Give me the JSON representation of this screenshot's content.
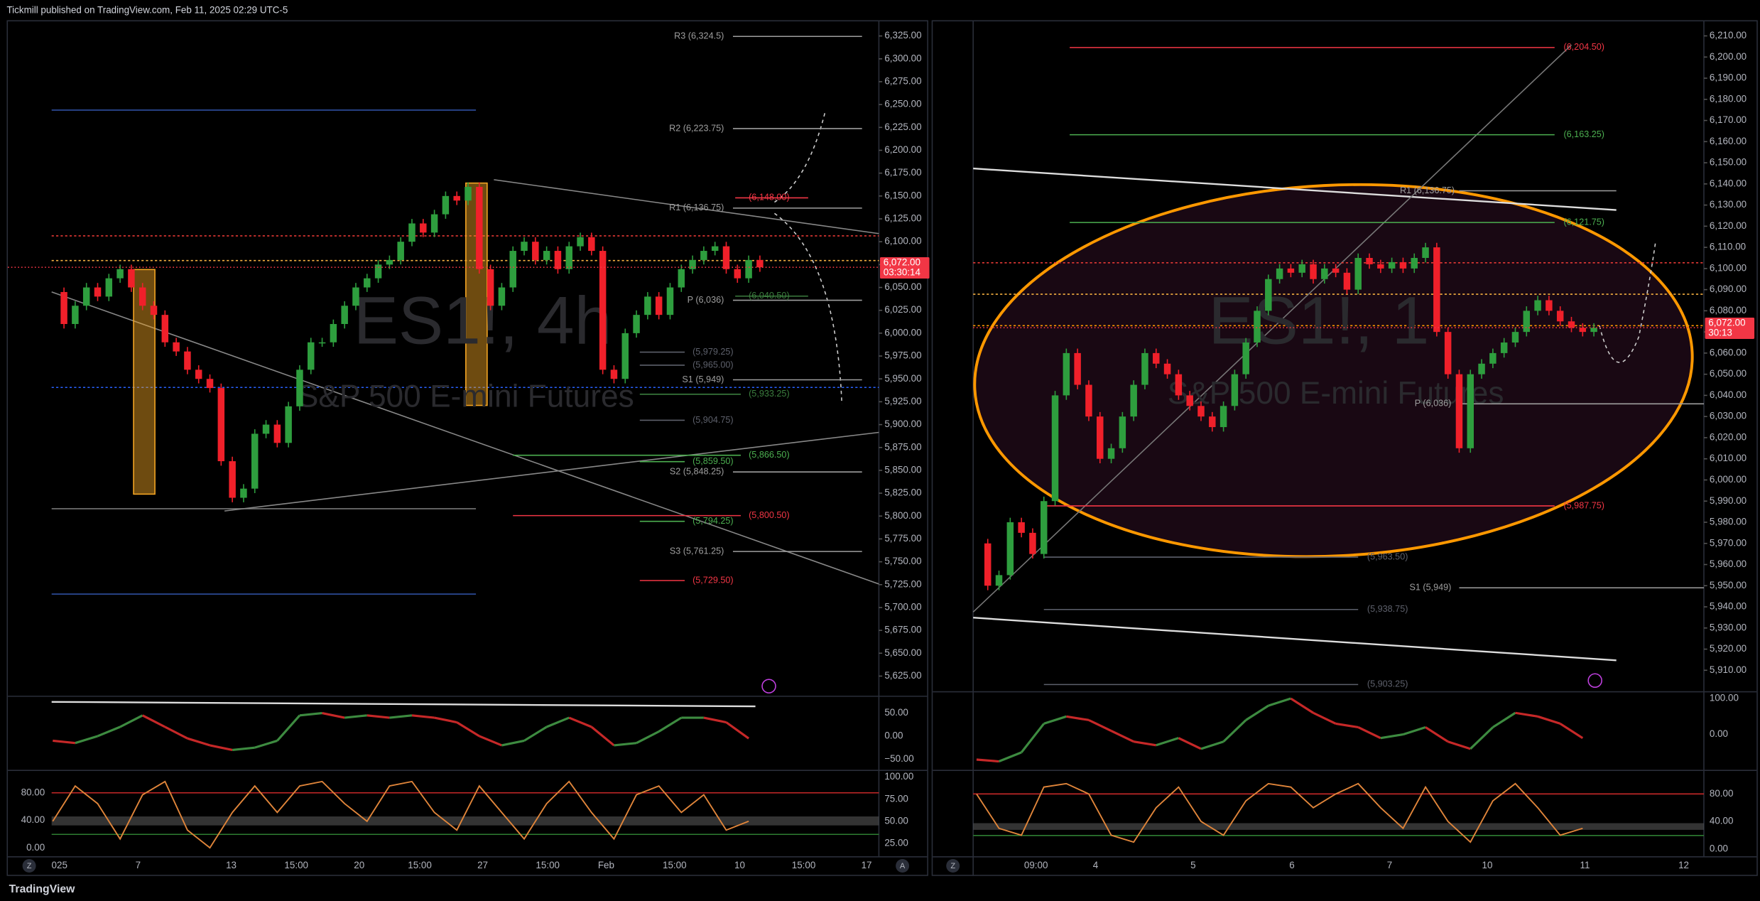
{
  "header": {
    "text": "Tickmill published on TradingView.com, Feb 11, 2025 02:29 UTC-5"
  },
  "footer": {
    "brand": "TradingView"
  },
  "chart_data": [
    {
      "type": "candlestick",
      "symbol": "ES1!, 4h",
      "description": "S&P 500 E-mini Futures",
      "up_color": "#2e9e3e",
      "down_color": "#f0202a",
      "values": [
        6045,
        6010,
        6030,
        6050,
        6040,
        6060,
        6070,
        6050,
        6030,
        6020,
        5990,
        5980,
        5960,
        5950,
        5940,
        5860,
        5820,
        5830,
        5890,
        5900,
        5880,
        5920,
        5960,
        5990,
        5990,
        6010,
        6030,
        6050,
        6060,
        6075,
        6080,
        6100,
        6120,
        6110,
        6130,
        6150,
        6145,
        6160,
        6070,
        6030,
        6050,
        6090,
        6100,
        6080,
        6090,
        6070,
        6095,
        6105,
        6090,
        5960,
        5950,
        6000,
        6020,
        6040,
        6020,
        6050,
        6070,
        6080,
        6090,
        6095,
        6070,
        6060,
        6080,
        6072
      ],
      "xlim": [
        -4,
        73.6
      ],
      "xticks": [
        {
          "value": 0.6,
          "label": "025"
        },
        {
          "value": 7.6,
          "label": "7"
        },
        {
          "value": 15.9,
          "label": "13"
        },
        {
          "value": 21.7,
          "label": "15:00"
        },
        {
          "value": 27.3,
          "label": "20"
        },
        {
          "value": 32.7,
          "label": "15:00"
        },
        {
          "value": 38.3,
          "label": "27"
        },
        {
          "value": 44.1,
          "label": "15:00"
        },
        {
          "value": 49.3,
          "label": "Feb"
        },
        {
          "value": 55.4,
          "label": "15:00"
        },
        {
          "value": 61.2,
          "label": "10"
        },
        {
          "value": 66.9,
          "label": "15:00"
        },
        {
          "value": 72.5,
          "label": "17"
        }
      ],
      "ylim": [
        5605.4,
        6342.2
      ],
      "yticks": [
        {
          "value": 5625,
          "label": "5,625.00"
        },
        {
          "value": 5650,
          "label": "5,650.00"
        },
        {
          "value": 5675,
          "label": "5,675.00"
        },
        {
          "value": 5700,
          "label": "5,700.00"
        },
        {
          "value": 5725,
          "label": "5,725.00"
        },
        {
          "value": 5750,
          "label": "5,750.00"
        },
        {
          "value": 5775,
          "label": "5,775.00"
        },
        {
          "value": 5800,
          "label": "5,800.00"
        },
        {
          "value": 5825,
          "label": "5,825.00"
        },
        {
          "value": 5850,
          "label": "5,850.00"
        },
        {
          "value": 5875,
          "label": "5,875.00"
        },
        {
          "value": 5900,
          "label": "5,900.00"
        },
        {
          "value": 5925,
          "label": "5,925.00"
        },
        {
          "value": 5950,
          "label": "5,950.00"
        },
        {
          "value": 5975,
          "label": "5,975.00"
        },
        {
          "value": 6000,
          "label": "6,000.00"
        },
        {
          "value": 6025,
          "label": "6,025.00"
        },
        {
          "value": 6050,
          "label": "6,050.00"
        },
        {
          "value": 6075,
          "label": "6,075.00"
        },
        {
          "value": 6100,
          "label": "6,100.00"
        },
        {
          "value": 6125,
          "label": "6,125.00"
        },
        {
          "value": 6150,
          "label": "6,150.00"
        },
        {
          "value": 6175,
          "label": "6,175.00"
        },
        {
          "value": 6200,
          "label": "6,200.00"
        },
        {
          "value": 6225,
          "label": "6,225.00"
        },
        {
          "value": 6250,
          "label": "6,250.00"
        },
        {
          "value": 6275,
          "label": "6,275.00"
        },
        {
          "value": 6300,
          "label": "6,300.00"
        },
        {
          "value": 6325,
          "label": "6,325.00"
        }
      ],
      "levels": [
        {
          "label": "R3 (6,324.5)",
          "value": 6324.5,
          "color": "#9e9e9e"
        },
        {
          "label": "R2 (6,223.75)",
          "value": 6223.75,
          "color": "#9e9e9e"
        },
        {
          "label": "R1 (6,136.75)",
          "value": 6136.75,
          "color": "#9e9e9e"
        },
        {
          "label": "P (6,036)",
          "value": 6036,
          "color": "#9e9e9e"
        },
        {
          "label": "S1 (5,949)",
          "value": 5949,
          "color": "#9e9e9e"
        },
        {
          "label": "S2 (5,848.25)",
          "value": 5848.25,
          "color": "#9e9e9e"
        },
        {
          "label": "S3 (5,761.25)",
          "value": 5761.25,
          "color": "#9e9e9e"
        },
        {
          "label": "(6,148.00)",
          "value": 6148,
          "color": "#f23645"
        },
        {
          "label": "(6,040.50)",
          "value": 6040.5,
          "color": "#3b7d3e"
        },
        {
          "label": "(5,979.25)",
          "value": 5979.25,
          "color": "#5d606b"
        },
        {
          "label": "(5,965.00)",
          "value": 5965,
          "color": "#5d606b"
        },
        {
          "label": "(5,933.25)",
          "value": 5933.25,
          "color": "#3b7d3e"
        },
        {
          "label": "(5,904.75)",
          "value": 5904.75,
          "color": "#5d606b"
        },
        {
          "label": "(5,866.50)",
          "value": 5866.5,
          "color": "#4caf50"
        },
        {
          "label": "(5,859.50)",
          "value": 5859.5,
          "color": "#4caf50"
        },
        {
          "label": "(5,800.50)",
          "value": 5800.5,
          "color": "#f23645"
        },
        {
          "label": "(5,794.25)",
          "value": 5794.25,
          "color": "#4caf50"
        },
        {
          "label": "(5,729.50)",
          "value": 5729.5,
          "color": "#f23645"
        }
      ],
      "price_tag": {
        "value": 6072,
        "label": "6,072.00",
        "countdown": "03:30:14",
        "color": "#f23645"
      },
      "corner_buttons": [
        "Z",
        "A"
      ],
      "indicators": [
        {
          "type": "oscillator",
          "up_color": "#3d8b40",
          "down_color": "#c62828",
          "xlim": [
            -2,
            36.8
          ],
          "ylim": [
            -74.4,
            81.7
          ],
          "yticks": [
            {
              "value": 50,
              "label": "50.00"
            },
            {
              "value": 0,
              "label": "0.00"
            },
            {
              "value": -50,
              "label": "−50.00"
            }
          ],
          "values": [
            -10,
            -15,
            0,
            20,
            45,
            20,
            -5,
            -20,
            -30,
            -25,
            -10,
            45,
            50,
            40,
            45,
            40,
            45,
            40,
            30,
            0,
            -20,
            -10,
            20,
            40,
            20,
            -20,
            -15,
            10,
            40,
            40,
            30,
            -5
          ]
        },
        {
          "type": "line",
          "color": "#e0853a",
          "xlim": [
            -2,
            36.8
          ],
          "ylim": [
            11,
            105.1
          ],
          "yticks": [
            {
              "value": 100,
              "label": "100.00"
            },
            {
              "value": 75,
              "label": "75.00"
            },
            {
              "value": 50,
              "label": "50.00"
            },
            {
              "value": 25,
              "label": "25.00"
            }
          ],
          "y2lim": [
            -11.4,
            109.4
          ],
          "y2ticks": [
            {
              "value": 80,
              "label": "80.00"
            },
            {
              "value": 40,
              "label": "40.00"
            },
            {
              "value": 0,
              "label": "0.00"
            }
          ],
          "values": [
            50,
            90,
            70,
            30,
            80,
            95,
            40,
            20,
            60,
            90,
            60,
            90,
            95,
            70,
            50,
            90,
            95,
            60,
            40,
            90,
            60,
            30,
            70,
            95,
            60,
            30,
            80,
            90,
            60,
            80,
            40,
            50
          ]
        }
      ]
    },
    {
      "type": "candlestick",
      "symbol": "ES1!, 1",
      "description": "S&P 500 E-mini Futures",
      "up_color": "#2e9e3e",
      "down_color": "#f0202a",
      "values": [
        5970,
        5950,
        5955,
        5980,
        5975,
        5965,
        5990,
        6040,
        6060,
        6045,
        6030,
        6010,
        6015,
        6030,
        6045,
        6060,
        6055,
        6050,
        6040,
        6035,
        6030,
        6025,
        6035,
        6050,
        6065,
        6080,
        6095,
        6100,
        6098,
        6102,
        6095,
        6100,
        6098,
        6090,
        6105,
        6102,
        6100,
        6103,
        6100,
        6105,
        6110,
        6070,
        6050,
        6015,
        6050,
        6055,
        6060,
        6065,
        6070,
        6080,
        6085,
        6080,
        6075,
        6072,
        6070,
        6072
      ],
      "xlim": [
        -0.3,
        64.8
      ],
      "xticks": [
        {
          "value": 5.3,
          "label": "09:00"
        },
        {
          "value": 10.6,
          "label": "4"
        },
        {
          "value": 19.3,
          "label": "5"
        },
        {
          "value": 28.1,
          "label": "6"
        },
        {
          "value": 36.8,
          "label": "7"
        },
        {
          "value": 45.5,
          "label": "10"
        },
        {
          "value": 54.2,
          "label": "11"
        },
        {
          "value": 63,
          "label": "12"
        }
      ],
      "ylim": [
        5900.9,
        6217.4
      ],
      "yticks": [
        {
          "value": 5910,
          "label": "5,910.00"
        },
        {
          "value": 5920,
          "label": "5,920.00"
        },
        {
          "value": 5930,
          "label": "5,930.00"
        },
        {
          "value": 5940,
          "label": "5,940.00"
        },
        {
          "value": 5950,
          "label": "5,950.00"
        },
        {
          "value": 5960,
          "label": "5,960.00"
        },
        {
          "value": 5970,
          "label": "5,970.00"
        },
        {
          "value": 5980,
          "label": "5,980.00"
        },
        {
          "value": 5990,
          "label": "5,990.00"
        },
        {
          "value": 6000,
          "label": "6,000.00"
        },
        {
          "value": 6010,
          "label": "6,010.00"
        },
        {
          "value": 6020,
          "label": "6,020.00"
        },
        {
          "value": 6030,
          "label": "6,030.00"
        },
        {
          "value": 6040,
          "label": "6,040.00"
        },
        {
          "value": 6050,
          "label": "6,050.00"
        },
        {
          "value": 6060,
          "label": "6,060.00"
        },
        {
          "value": 6070,
          "label": "6,070.00"
        },
        {
          "value": 6080,
          "label": "6,080.00"
        },
        {
          "value": 6090,
          "label": "6,090.00"
        },
        {
          "value": 6100,
          "label": "6,100.00"
        },
        {
          "value": 6110,
          "label": "6,110.00"
        },
        {
          "value": 6120,
          "label": "6,120.00"
        },
        {
          "value": 6130,
          "label": "6,130.00"
        },
        {
          "value": 6140,
          "label": "6,140.00"
        },
        {
          "value": 6150,
          "label": "6,150.00"
        },
        {
          "value": 6160,
          "label": "6,160.00"
        },
        {
          "value": 6170,
          "label": "6,170.00"
        },
        {
          "value": 6180,
          "label": "6,180.00"
        },
        {
          "value": 6190,
          "label": "6,190.00"
        },
        {
          "value": 6200,
          "label": "6,200.00"
        },
        {
          "value": 6210,
          "label": "6,210.00"
        }
      ],
      "levels": [
        {
          "label": "(6,204.50)",
          "value": 6204.5,
          "color": "#f23645"
        },
        {
          "label": "(6,163.25)",
          "value": 6163.25,
          "color": "#4caf50"
        },
        {
          "label": "R1 (6,136.75)",
          "value": 6136.75,
          "color": "#9e9e9e"
        },
        {
          "label": "(6,121.75)",
          "value": 6121.75,
          "color": "#4caf50"
        },
        {
          "label": "P (6,036)",
          "value": 6036,
          "color": "#9e9e9e"
        },
        {
          "label": "(5,987.75)",
          "value": 5987.75,
          "color": "#f23645"
        },
        {
          "label": "(5,963.50)",
          "value": 5963.5,
          "color": "#5d606b"
        },
        {
          "label": "S1 (5,949)",
          "value": 5949,
          "color": "#9e9e9e"
        },
        {
          "label": "(5,938.75)",
          "value": 5938.75,
          "color": "#5d606b"
        },
        {
          "label": "(5,903.25)",
          "value": 5903.25,
          "color": "#5d606b"
        }
      ],
      "price_tag": {
        "value": 6072,
        "label": "6,072.00",
        "countdown": "30:13",
        "color": "#f23645"
      },
      "corner_buttons": [
        "Z"
      ],
      "indicators": [
        {
          "type": "oscillator",
          "up_color": "#3d8b40",
          "down_color": "#c62828",
          "xlim": [
            -0.15,
            32.4
          ],
          "ylim": [
            -100,
            112.5
          ],
          "yticks": [
            {
              "value": 100,
              "label": "100.00"
            },
            {
              "value": 0,
              "label": "0.00"
            }
          ],
          "values": [
            -70,
            -75,
            -50,
            30,
            50,
            40,
            10,
            -20,
            -30,
            -10,
            -40,
            -20,
            40,
            80,
            100,
            60,
            30,
            20,
            -10,
            0,
            20,
            -20,
            -40,
            20,
            60,
            50,
            30,
            -10
          ]
        },
        {
          "type": "line",
          "color": "#e0853a",
          "xlim": [
            -0.15,
            32.4
          ],
          "ylim": [
            -9.8,
            111
          ],
          "yticks": [
            {
              "value": 80,
              "label": "80.00"
            },
            {
              "value": 40,
              "label": "40.00"
            },
            {
              "value": 0,
              "label": "0.00"
            }
          ],
          "values": [
            80,
            30,
            20,
            90,
            95,
            80,
            20,
            10,
            60,
            90,
            40,
            20,
            70,
            95,
            90,
            60,
            80,
            95,
            60,
            30,
            90,
            40,
            10,
            70,
            95,
            60,
            20,
            30
          ]
        }
      ]
    }
  ]
}
